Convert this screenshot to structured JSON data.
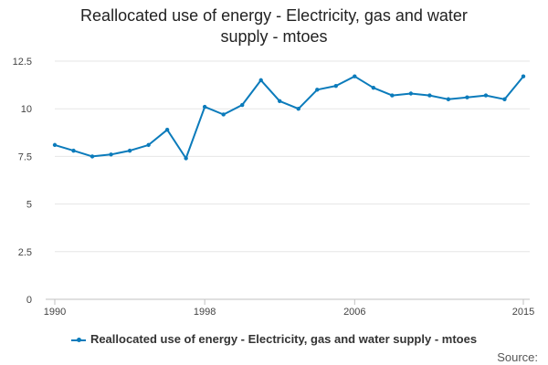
{
  "chart_data": {
    "type": "line",
    "title_lines": [
      "Reallocated use of energy - Electricity, gas and water",
      "supply - mtoes"
    ],
    "xlabel": "",
    "ylabel": "",
    "x": [
      1990,
      1991,
      1992,
      1993,
      1994,
      1995,
      1996,
      1997,
      1998,
      1999,
      2000,
      2001,
      2002,
      2003,
      2004,
      2005,
      2006,
      2007,
      2008,
      2009,
      2010,
      2011,
      2012,
      2013,
      2014,
      2015
    ],
    "xlim": [
      1990,
      2015
    ],
    "x_ticks": [
      "1990",
      "1998",
      "2006",
      "2015"
    ],
    "x_tick_values": [
      1990,
      1998,
      2006,
      2015
    ],
    "ylim": [
      0,
      12.5
    ],
    "y_ticks": [
      "0",
      "2.5",
      "5",
      "7.5",
      "10",
      "12.5"
    ],
    "y_tick_values": [
      0,
      2.5,
      5,
      7.5,
      10,
      12.5
    ],
    "grid": true,
    "legend_position": "bottom",
    "series": [
      {
        "name": "Reallocated use of energy - Electricity, gas and water supply - mtoes",
        "color": "#0b7bbb",
        "values": [
          8.1,
          7.8,
          7.5,
          7.6,
          7.8,
          8.1,
          8.9,
          7.4,
          10.1,
          9.7,
          10.2,
          11.5,
          10.4,
          10.0,
          11.0,
          11.2,
          11.7,
          11.1,
          10.7,
          10.8,
          10.7,
          10.5,
          10.6,
          10.7,
          10.5,
          11.7
        ]
      }
    ]
  },
  "source_label": "Source:"
}
